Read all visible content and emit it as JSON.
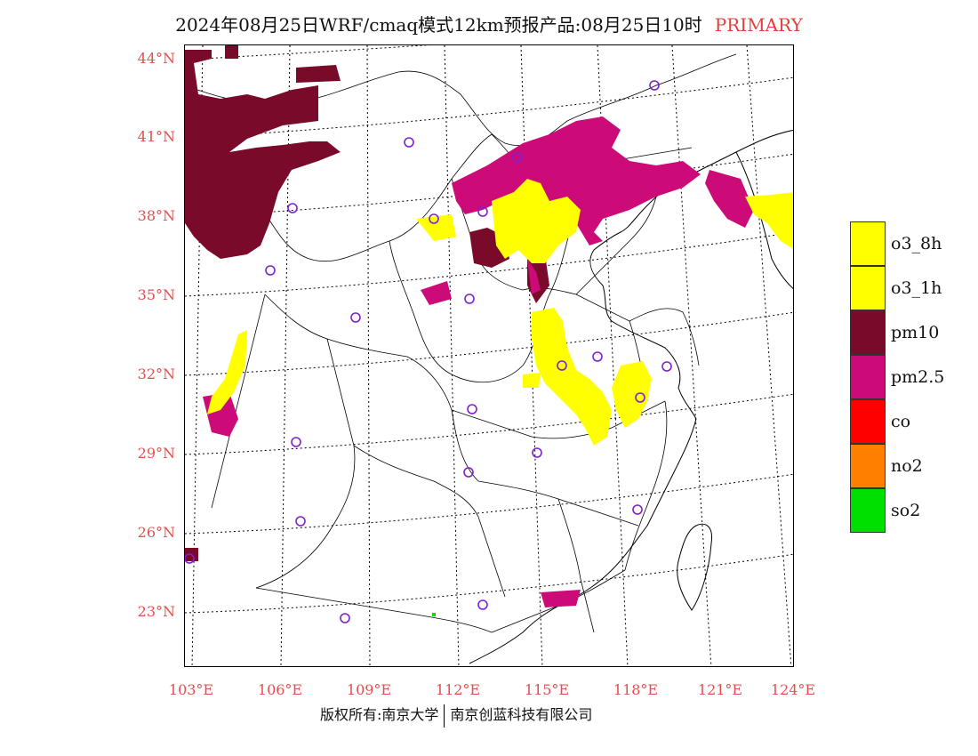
{
  "title": {
    "main": "2024年08月25日WRF/cmaq模式12km预报产品:08月25日10时",
    "tag": "PRIMARY"
  },
  "colors": {
    "o3_8h": "#ffff00",
    "o3_1h": "#ffff00",
    "pm10": "#7a0a2a",
    "pm25": "#cc0a78",
    "co": "#ff0000",
    "no2": "#ff7f00",
    "so2": "#00e000",
    "station_circle": "#8020d0",
    "axis_label": "#e05050"
  },
  "lat_labels": [
    "44°N",
    "41°N",
    "38°N",
    "35°N",
    "32°N",
    "29°N",
    "26°N",
    "23°N"
  ],
  "lon_labels": [
    "103°E",
    "106°E",
    "109°E",
    "112°E",
    "115°E",
    "118°E",
    "121°E",
    "124°E"
  ],
  "legend": [
    {
      "key": "o3_8h",
      "label": "o3_8h"
    },
    {
      "key": "o3_1h",
      "label": "o3_1h"
    },
    {
      "key": "pm10",
      "label": "pm10"
    },
    {
      "key": "pm25",
      "label": "pm2.5"
    },
    {
      "key": "co",
      "label": "co"
    },
    {
      "key": "no2",
      "label": "no2"
    },
    {
      "key": "so2",
      "label": "so2"
    }
  ],
  "footer": {
    "left": "版权所有:南京大学",
    "right": "南京创蓝科技有限公司"
  }
}
